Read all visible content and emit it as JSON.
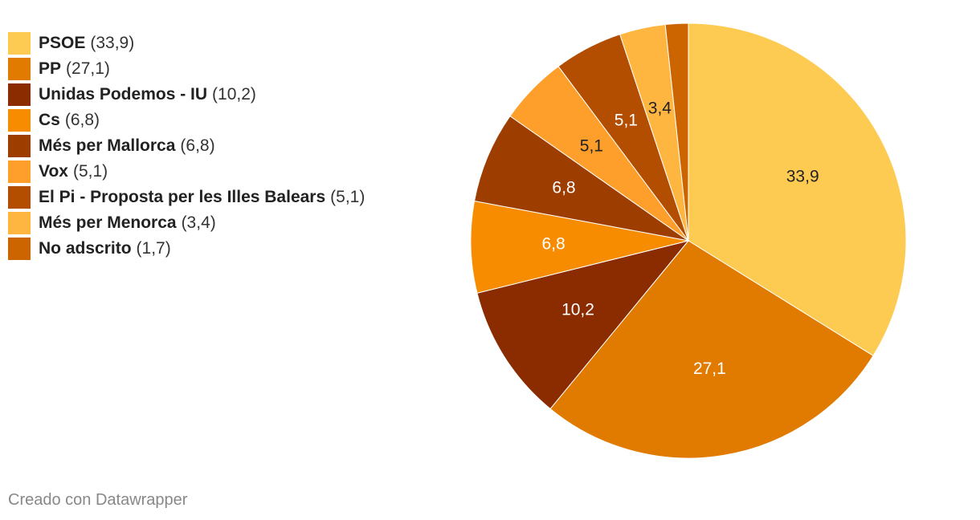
{
  "chart_data": {
    "type": "pie",
    "categories": [
      "PSOE",
      "PP",
      "Unidas Podemos - IU",
      "Cs",
      "Més per Mallorca",
      "Vox",
      "El Pi - Proposta per les Illes Balears",
      "Més per Menorca",
      "No adscrito"
    ],
    "values": [
      33.9,
      27.1,
      10.2,
      6.8,
      6.8,
      5.1,
      5.1,
      3.4,
      1.7
    ],
    "value_labels": [
      "33,9",
      "27,1",
      "10,2",
      "6,8",
      "6,8",
      "5,1",
      "5,1",
      "3,4",
      "1,7"
    ],
    "legend_value_labels": [
      "(33,9)",
      "(27,1)",
      "(10,2)",
      "(6,8)",
      "(6,8)",
      "(5,1)",
      "(5,1)",
      "(3,4)",
      "(1,7)"
    ],
    "colors": [
      "#fecb52",
      "#e07b00",
      "#8a2b00",
      "#f78c00",
      "#9e3d00",
      "#fd9f2a",
      "#b34e00",
      "#feb640",
      "#cc6500"
    ],
    "label_colors": [
      "#222222",
      "#ffffff",
      "#ffffff",
      "#ffffff",
      "#ffffff",
      "#222222",
      "#ffffff",
      "#222222",
      "#ffffff"
    ],
    "show_slice_label": [
      true,
      true,
      true,
      true,
      true,
      true,
      true,
      true,
      false
    ],
    "start": "12 o'clock",
    "direction": "clockwise",
    "legend_placement": "top-left"
  },
  "footer": {
    "credit": "Creado con Datawrapper"
  }
}
